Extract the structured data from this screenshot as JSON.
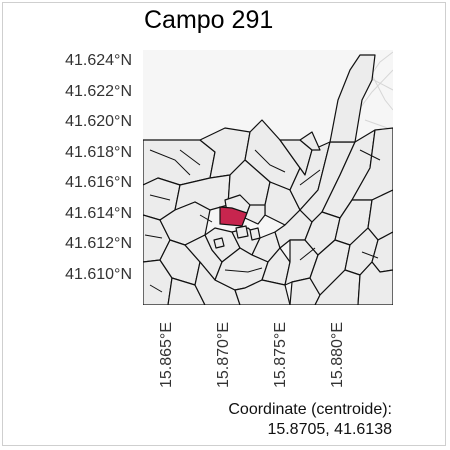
{
  "title": "Campo 291",
  "axes": {
    "lat_ticks": [
      "41.624°N",
      "41.622°N",
      "41.620°N",
      "41.618°N",
      "41.616°N",
      "41.614°N",
      "41.612°N",
      "41.610°N"
    ],
    "lon_ticks": [
      "15.865°E",
      "15.870°E",
      "15.875°E",
      "15.880°E"
    ]
  },
  "footer": {
    "label": "Coordinate (centroide):",
    "value": "15.8705, 41.6138"
  },
  "colors": {
    "highlight": "#c7254e",
    "parcel_fill": "#ececec",
    "parcel_stroke": "#111111",
    "road": "#d6d6d6",
    "background": "#f6f6f6"
  }
}
